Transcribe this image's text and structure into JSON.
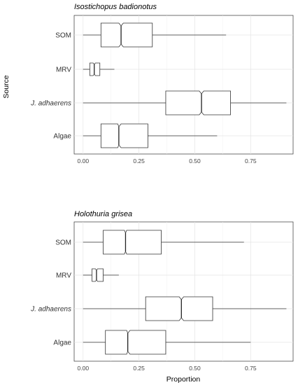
{
  "chart_data": [
    {
      "type": "boxplot",
      "orientation": "horizontal",
      "notched": true,
      "title": "Isostichopus badionotus",
      "categories": [
        "SOM",
        "MRV",
        "J. adhaerens",
        "Algae"
      ],
      "italic_categories": [
        "J. adhaerens"
      ],
      "xlabel": "",
      "ylabel": "Source",
      "xlim": [
        -0.04,
        0.94
      ],
      "xticks": [
        0.0,
        0.25,
        0.5,
        0.75
      ],
      "xtick_labels": [
        "0.00",
        "0.25",
        "0.50",
        "0.75"
      ],
      "grid": true,
      "boxes": [
        {
          "category": "SOM",
          "whisker_low": 0.0,
          "q1": 0.08,
          "notch_low": 0.16,
          "median": 0.17,
          "notch_high": 0.18,
          "q3": 0.31,
          "whisker_high": 0.64
        },
        {
          "category": "MRV",
          "whisker_low": 0.0,
          "q1": 0.03,
          "notch_low": 0.045,
          "median": 0.05,
          "notch_high": 0.055,
          "q3": 0.075,
          "whisker_high": 0.14
        },
        {
          "category": "J. adhaerens",
          "whisker_low": 0.0,
          "q1": 0.37,
          "notch_low": 0.52,
          "median": 0.53,
          "notch_high": 0.54,
          "q3": 0.66,
          "whisker_high": 0.91
        },
        {
          "category": "Algae",
          "whisker_low": 0.0,
          "q1": 0.08,
          "notch_low": 0.155,
          "median": 0.16,
          "notch_high": 0.17,
          "q3": 0.29,
          "whisker_high": 0.6
        }
      ]
    },
    {
      "type": "boxplot",
      "orientation": "horizontal",
      "notched": true,
      "title": "Holothuria grisea",
      "categories": [
        "SOM",
        "MRV",
        "J. adhaerens",
        "Algae"
      ],
      "italic_categories": [
        "J. adhaerens"
      ],
      "xlabel": "Proportion",
      "ylabel": "",
      "xlim": [
        -0.04,
        0.94
      ],
      "xticks": [
        0.0,
        0.25,
        0.5,
        0.75
      ],
      "xtick_labels": [
        "0.00",
        "0.25",
        "0.50",
        "0.75"
      ],
      "grid": true,
      "boxes": [
        {
          "category": "SOM",
          "whisker_low": 0.0,
          "q1": 0.09,
          "notch_low": 0.185,
          "median": 0.19,
          "notch_high": 0.195,
          "q3": 0.35,
          "whisker_high": 0.72
        },
        {
          "category": "MRV",
          "whisker_low": 0.0,
          "q1": 0.04,
          "notch_low": 0.055,
          "median": 0.06,
          "notch_high": 0.065,
          "q3": 0.09,
          "whisker_high": 0.16
        },
        {
          "category": "J. adhaerens",
          "whisker_low": 0.0,
          "q1": 0.28,
          "notch_low": 0.43,
          "median": 0.44,
          "notch_high": 0.45,
          "q3": 0.58,
          "whisker_high": 0.91
        },
        {
          "category": "Algae",
          "whisker_low": 0.0,
          "q1": 0.1,
          "notch_low": 0.195,
          "median": 0.2,
          "notch_high": 0.21,
          "q3": 0.37,
          "whisker_high": 0.75
        }
      ]
    }
  ]
}
